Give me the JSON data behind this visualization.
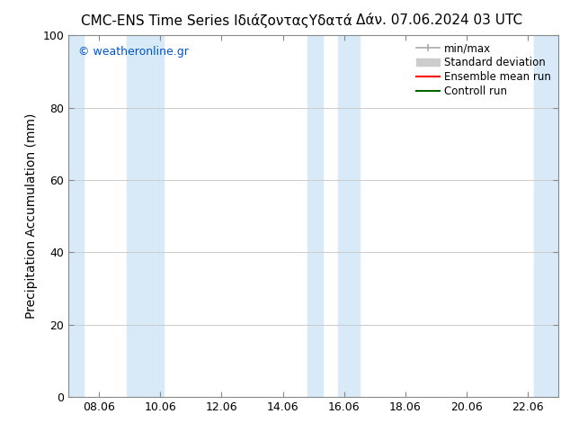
{
  "title_left": "CMC-ENS Time Series ΙδιάζονταςΥδατά",
  "title_right": "Δάν. 07.06.2024 03 UTC",
  "ylabel": "Precipitation Accumulation (mm)",
  "ylim": [
    0,
    100
  ],
  "xlim": [
    7.0,
    23.0
  ],
  "xtick_positions": [
    8,
    10,
    12,
    14,
    16,
    18,
    20,
    22
  ],
  "xtick_labels": [
    "08.06",
    "10.06",
    "12.06",
    "14.06",
    "16.06",
    "18.06",
    "20.06",
    "22.06"
  ],
  "watermark": "© weatheronline.gr",
  "watermark_color": "#0055cc",
  "bg_color": "#ffffff",
  "plot_bg_color": "#ffffff",
  "shaded_regions": [
    {
      "x_start": 7.0,
      "x_end": 7.5,
      "color": "#d8eaf7"
    },
    {
      "x_start": 8.9,
      "x_end": 10.1,
      "color": "#d8eaf7"
    },
    {
      "x_start": 14.8,
      "x_end": 15.3,
      "color": "#d8eaf7"
    },
    {
      "x_start": 15.8,
      "x_end": 16.5,
      "color": "#d8eaf7"
    },
    {
      "x_start": 22.2,
      "x_end": 23.0,
      "color": "#d8eaf7"
    }
  ],
  "legend_minmax_color": "#aaaaaa",
  "legend_std_color": "#cccccc",
  "legend_ens_color": "#ff0000",
  "legend_ctrl_color": "#006600",
  "yticks": [
    0,
    20,
    40,
    60,
    80,
    100
  ],
  "grid_color": "#cccccc",
  "spine_color": "#888888",
  "tick_label_fontsize": 9,
  "axis_label_fontsize": 10,
  "title_fontsize": 11,
  "legend_fontsize": 8.5
}
